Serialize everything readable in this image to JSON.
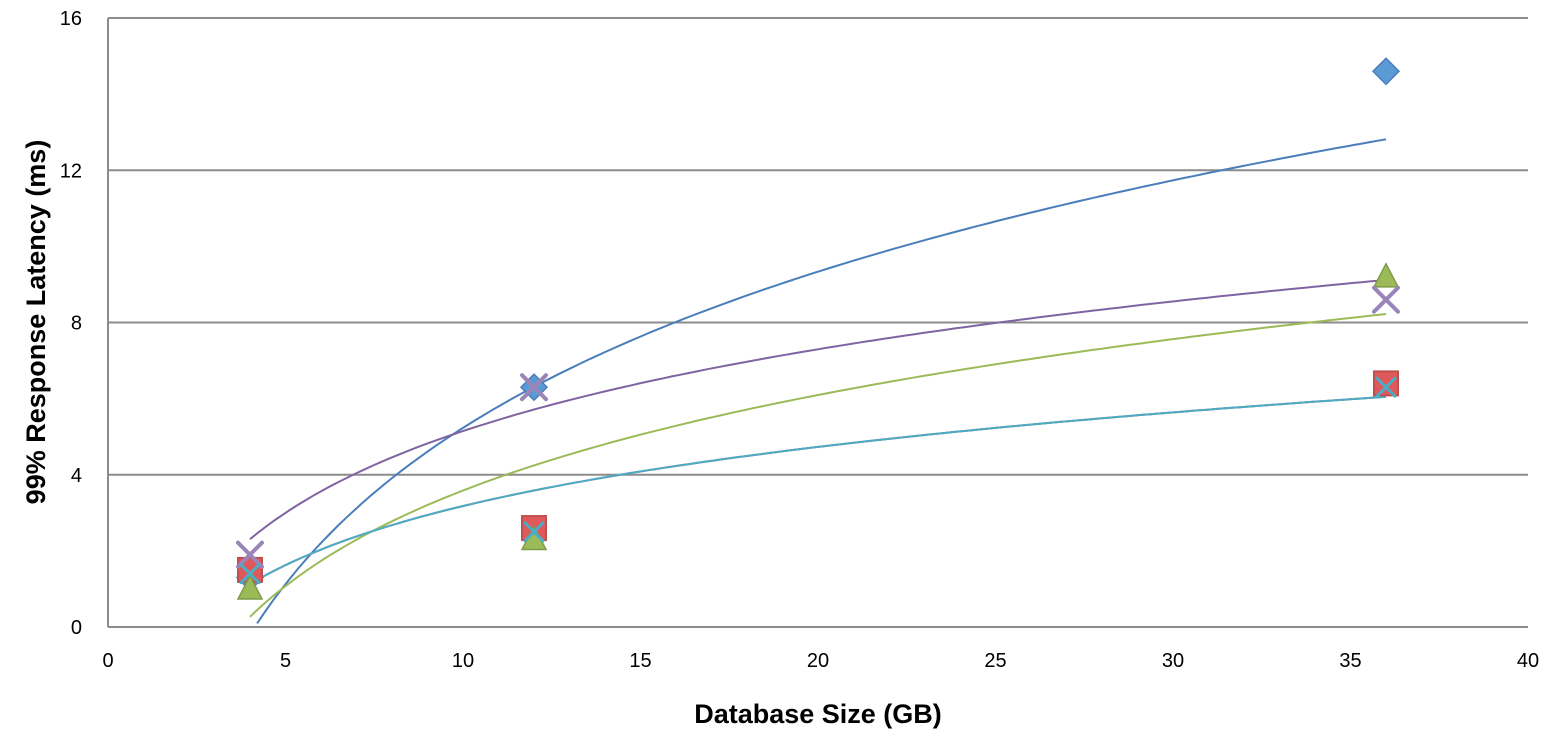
{
  "chart_data": {
    "type": "scatter",
    "title": "",
    "xlabel": "Database Size (GB)",
    "ylabel": "99% Response Latency (ms)",
    "xlim": [
      0,
      40
    ],
    "ylim": [
      0,
      16
    ],
    "x_ticks": [
      0,
      5,
      10,
      15,
      20,
      25,
      30,
      35,
      40
    ],
    "y_ticks": [
      0,
      4,
      8,
      12,
      16
    ],
    "grid": "horizontal",
    "legend": "none",
    "trendline": "logarithmic",
    "series": [
      {
        "color": "#4a7ebb",
        "fill": "#5b9bd5",
        "marker": "diamond",
        "x": [
          4,
          12,
          36
        ],
        "y": [
          1.3,
          6.3,
          14.6
        ],
        "trend": {
          "a": 5.92,
          "b": -8.4
        },
        "trend_x": [
          4.2,
          36
        ]
      },
      {
        "color": "#c0504d",
        "fill": "#e0595a",
        "marker": "square",
        "x": [
          4,
          12,
          36
        ],
        "y": [
          1.5,
          2.6,
          6.4
        ],
        "trend": {
          "a": 2.24,
          "b": -1.98
        },
        "trend_x": [
          4,
          36
        ]
      },
      {
        "color": "#9bbb59",
        "fill": "#9bbb59",
        "marker": "triangle",
        "x": [
          4,
          12,
          36
        ],
        "y": [
          1.0,
          2.3,
          9.2
        ],
        "trend": {
          "a": 3.62,
          "b": -4.75
        },
        "trend_x": [
          4,
          36
        ]
      },
      {
        "color": "#8064a2",
        "fill": "#9a84b8",
        "marker": "x",
        "x": [
          4,
          12,
          36
        ],
        "y": [
          1.9,
          6.3,
          8.6
        ],
        "trend": {
          "a": 3.1,
          "b": -1.99
        },
        "trend_x": [
          4,
          36
        ]
      },
      {
        "color": "#4bacc6",
        "fill": "#4bacc6",
        "marker": "cross",
        "x": [
          4,
          12,
          36
        ],
        "y": [
          1.4,
          2.5,
          6.3
        ],
        "trend": {
          "a": 2.24,
          "b": -1.98
        },
        "trend_x": [
          4,
          36
        ]
      }
    ]
  }
}
